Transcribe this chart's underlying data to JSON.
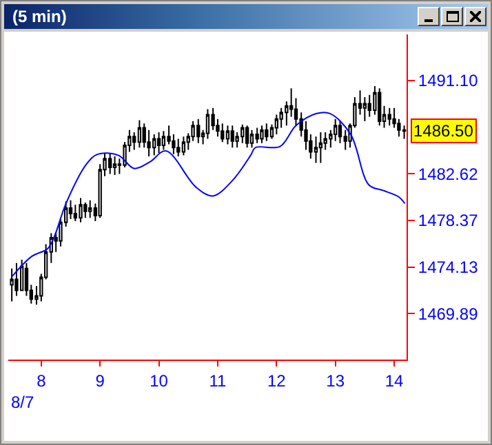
{
  "chart_data": {
    "type": "candlestick",
    "title": "(5 min)",
    "x": [
      7.5,
      7.58,
      7.67,
      7.75,
      7.83,
      7.92,
      8,
      8.08,
      8.17,
      8.25,
      8.33,
      8.42,
      8.5,
      8.58,
      8.67,
      8.75,
      8.83,
      8.92,
      9,
      9.08,
      9.17,
      9.25,
      9.33,
      9.42,
      9.5,
      9.58,
      9.67,
      9.75,
      9.83,
      9.92,
      10,
      10.08,
      10.17,
      10.25,
      10.33,
      10.42,
      10.5,
      10.58,
      10.67,
      10.75,
      10.83,
      10.92,
      11,
      11.08,
      11.17,
      11.25,
      11.33,
      11.42,
      11.5,
      11.58,
      11.67,
      11.75,
      11.83,
      11.92,
      12,
      12.08,
      12.17,
      12.25,
      12.33,
      12.42,
      12.5,
      12.58,
      12.67,
      12.75,
      12.83,
      12.92,
      13,
      13.08,
      13.17,
      13.25,
      13.33,
      13.42,
      13.5,
      13.58,
      13.67,
      13.75,
      13.83,
      13.92,
      14,
      14.08,
      14.17
    ],
    "ohlc": [
      [
        1472.5,
        1474.0,
        1471.0,
        1473.0
      ],
      [
        1473,
        1474.5,
        1471.5,
        1472.0
      ],
      [
        1472,
        1474.8,
        1472,
        1474.2
      ],
      [
        1474,
        1474.5,
        1471.5,
        1472
      ],
      [
        1472,
        1472.5,
        1470.8,
        1471.2
      ],
      [
        1471.2,
        1472.4,
        1470.7,
        1471.5
      ],
      [
        1471.5,
        1473.5,
        1471,
        1473.2
      ],
      [
        1473.2,
        1476.2,
        1473,
        1475.5
      ],
      [
        1475.5,
        1477.2,
        1474.5,
        1476.8
      ],
      [
        1476.8,
        1477.3,
        1475.5,
        1476.5
      ],
      [
        1476.5,
        1478.5,
        1476,
        1478.2
      ],
      [
        1478.2,
        1480.1,
        1477.8,
        1479.5
      ],
      [
        1479.5,
        1480.2,
        1478.5,
        1479.0
      ],
      [
        1479,
        1479.8,
        1478.3,
        1478.6
      ],
      [
        1478.6,
        1480.4,
        1478.2,
        1479.8
      ],
      [
        1479.8,
        1480.0,
        1478.6,
        1479.2
      ],
      [
        1479.2,
        1480.2,
        1478.6,
        1479.5
      ],
      [
        1479.5,
        1479.9,
        1478.3,
        1478.8
      ],
      [
        1478.8,
        1483.5,
        1478.6,
        1483.0
      ],
      [
        1483,
        1484.5,
        1482.4,
        1484.0
      ],
      [
        1484,
        1484.5,
        1482.6,
        1483.2
      ],
      [
        1483.2,
        1484.2,
        1482.5,
        1483.5
      ],
      [
        1483.5,
        1484.0,
        1482.6,
        1483.4
      ],
      [
        1483.4,
        1485.5,
        1483.2,
        1485.2
      ],
      [
        1485.2,
        1486.6,
        1484.6,
        1486.0
      ],
      [
        1486,
        1486.4,
        1484.8,
        1485.5
      ],
      [
        1485.5,
        1487.5,
        1485,
        1486.8
      ],
      [
        1486.8,
        1487.2,
        1485.0,
        1485.5
      ],
      [
        1485.5,
        1486.6,
        1484.2,
        1485.0
      ],
      [
        1485,
        1486.2,
        1484.3,
        1485.8
      ],
      [
        1485.8,
        1486.4,
        1484.5,
        1485.2
      ],
      [
        1485.2,
        1486.5,
        1484.8,
        1486.0
      ],
      [
        1486,
        1487.0,
        1485.3,
        1485.6
      ],
      [
        1485.6,
        1486.2,
        1484.4,
        1485.0
      ],
      [
        1485,
        1485.8,
        1484.2,
        1484.6
      ],
      [
        1484.6,
        1486.0,
        1484.3,
        1485.5
      ],
      [
        1485.5,
        1486.3,
        1484.8,
        1486.0
      ],
      [
        1486,
        1487.4,
        1485.6,
        1487.0
      ],
      [
        1487,
        1487.6,
        1485.4,
        1486.0
      ],
      [
        1486,
        1486.6,
        1485.3,
        1486.3
      ],
      [
        1486.3,
        1488.5,
        1485.8,
        1488.0
      ],
      [
        1488,
        1488.6,
        1486.6,
        1487.0
      ],
      [
        1487,
        1487.6,
        1486.0,
        1486.5
      ],
      [
        1486.5,
        1487.2,
        1485.5,
        1485.8
      ],
      [
        1485.8,
        1487.0,
        1485.3,
        1486.5
      ],
      [
        1486.5,
        1487.0,
        1485.0,
        1485.6
      ],
      [
        1485.6,
        1486.4,
        1485.0,
        1486.0
      ],
      [
        1486,
        1487.1,
        1485.4,
        1486.8
      ],
      [
        1486.8,
        1487.0,
        1485.0,
        1485.4
      ],
      [
        1485.4,
        1486.6,
        1485.0,
        1486.2
      ],
      [
        1486.2,
        1486.8,
        1485.4,
        1485.8
      ],
      [
        1485.8,
        1487.0,
        1485.4,
        1486.6
      ],
      [
        1486.6,
        1487.2,
        1485.6,
        1486.0
      ],
      [
        1486,
        1487.1,
        1485.8,
        1486.8
      ],
      [
        1486.8,
        1488.0,
        1486.2,
        1487.6
      ],
      [
        1487.6,
        1488.6,
        1486.8,
        1488.2
      ],
      [
        1488.2,
        1489.2,
        1487.0,
        1488.8
      ],
      [
        1488.8,
        1490.4,
        1487.8,
        1488.5
      ],
      [
        1488.5,
        1489.5,
        1487.0,
        1487.6
      ],
      [
        1487.6,
        1488.2,
        1486.0,
        1486.6
      ],
      [
        1486.6,
        1487.4,
        1484.8,
        1485.6
      ],
      [
        1485.6,
        1486.2,
        1484.0,
        1484.6
      ],
      [
        1484.6,
        1486.0,
        1483.6,
        1485.0
      ],
      [
        1485,
        1486.4,
        1483.6,
        1485.4
      ],
      [
        1485.4,
        1486.4,
        1484.8,
        1485.8
      ],
      [
        1485.8,
        1486.6,
        1485.0,
        1486.2
      ],
      [
        1486.2,
        1487.6,
        1485.6,
        1487.0
      ],
      [
        1487,
        1487.4,
        1485.4,
        1486.0
      ],
      [
        1486,
        1486.6,
        1484.8,
        1485.6
      ],
      [
        1485.6,
        1487.2,
        1485.0,
        1487.0
      ],
      [
        1487,
        1489.6,
        1486.8,
        1489.0
      ],
      [
        1489,
        1490.2,
        1488.0,
        1488.6
      ],
      [
        1488.6,
        1489.6,
        1487.4,
        1489.0
      ],
      [
        1489,
        1489.8,
        1487.8,
        1488.4
      ],
      [
        1488.4,
        1490.6,
        1488.0,
        1490.0
      ],
      [
        1490,
        1490.4,
        1487.0,
        1487.4
      ],
      [
        1487.4,
        1488.8,
        1486.8,
        1488.0
      ],
      [
        1488,
        1488.6,
        1487.0,
        1487.6
      ],
      [
        1487.6,
        1488.6,
        1486.8,
        1487.2
      ],
      [
        1487.2,
        1487.6,
        1486.0,
        1486.6
      ],
      [
        1486.6,
        1487.0,
        1485.8,
        1486.5
      ]
    ],
    "color": "#000000",
    "series": [
      {
        "type": "line",
        "color": "#0000ff",
        "x": [
          7.51,
          7.84,
          8.11,
          8.23,
          8.42,
          8.77,
          8.96,
          9.31,
          9.58,
          9.85,
          10.12,
          10.63,
          10.92,
          11.25,
          11.56,
          11.64,
          12.06,
          12.33,
          12.68,
          12.91,
          13.26,
          13.57,
          13.81,
          14.08,
          14.18
        ],
        "values": [
          1473.3,
          1475.1,
          1475.8,
          1477.0,
          1479.9,
          1483.5,
          1484.4,
          1484.3,
          1483.1,
          1483.7,
          1484.7,
          1481.4,
          1480.6,
          1482.0,
          1484.3,
          1485.0,
          1485.1,
          1487.0,
          1488.1,
          1488.1,
          1486.2,
          1481.6,
          1481.1,
          1480.5,
          1479.9
        ]
      }
    ],
    "xlim": [
      7.44,
      14.21
    ],
    "xticks": [
      8,
      9,
      10,
      11,
      12,
      13,
      14
    ],
    "ylim": [
      1465.7,
      1495.3
    ],
    "yticks": [
      1469.89,
      1474.13,
      1478.37,
      1482.62,
      {
        "value": 1491.1,
        "label": "1491.10"
      }
    ],
    "annotations": [
      "8/7",
      {
        "text": "1486.50",
        "x": 14.17,
        "y": 1486.5
      }
    ]
  }
}
